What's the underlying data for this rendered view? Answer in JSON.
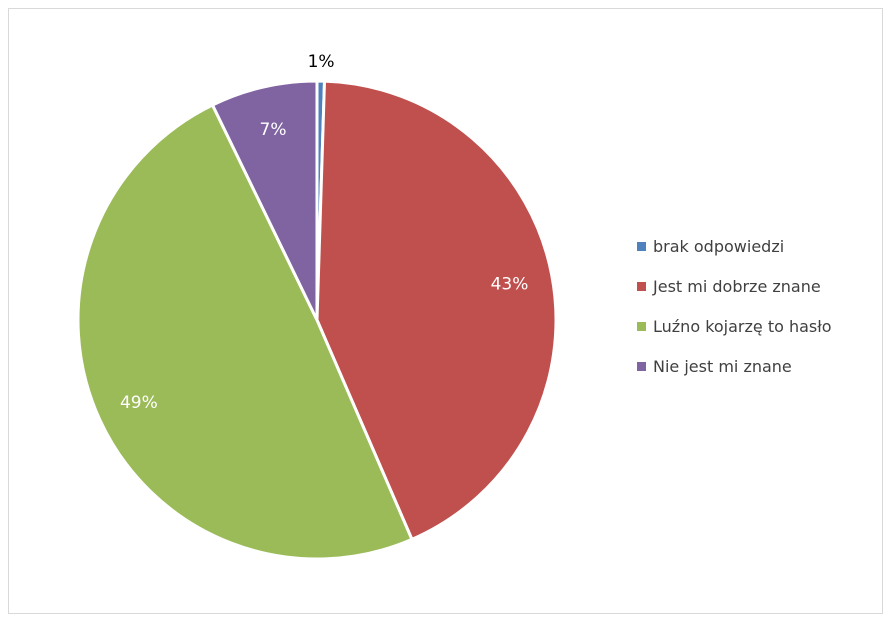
{
  "chart_data": {
    "type": "pie",
    "title": "",
    "slices": [
      {
        "label": "brak odpowiedzi",
        "value": 0.5,
        "display": "1%",
        "color": "#4f81bd",
        "label_color": "#000000"
      },
      {
        "label": "Jest mi dobrze znane",
        "value": 43,
        "display": "43%",
        "color": "#c0504d",
        "label_color": "#ffffff"
      },
      {
        "label": "Luźno kojarzę to hasło",
        "value": 49.3,
        "display": "49%",
        "color": "#9bbb59",
        "label_color": "#ffffff"
      },
      {
        "label": "Nie jest mi znane",
        "value": 7.2,
        "display": "7%",
        "color": "#8064a2",
        "label_color": "#ffffff"
      }
    ],
    "legend_position": "right",
    "start_angle": "top",
    "direction": "clockwise"
  }
}
